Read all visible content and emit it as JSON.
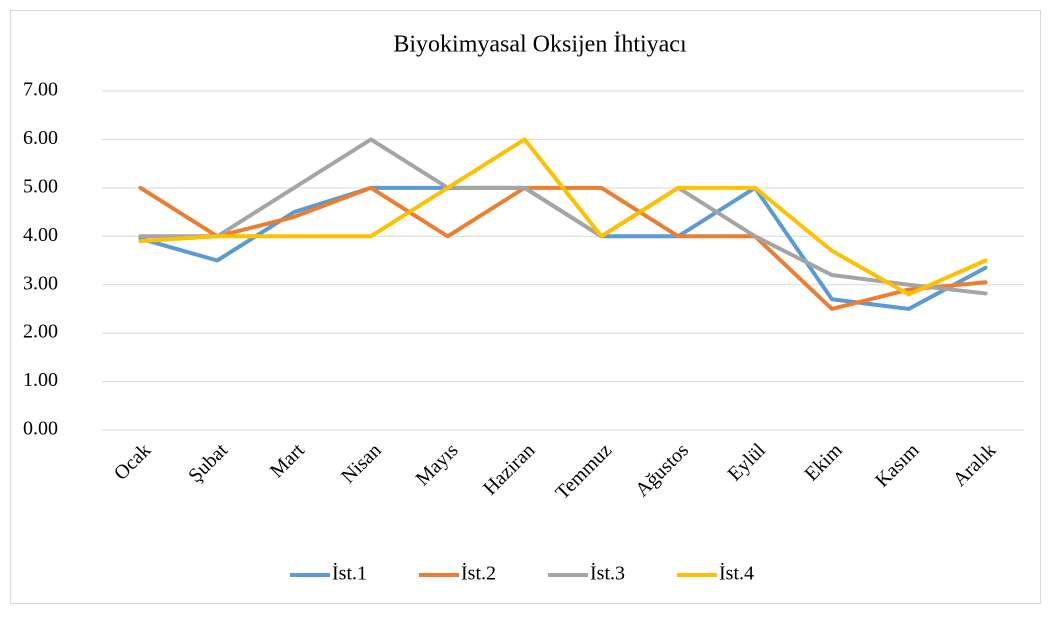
{
  "chart_data": {
    "type": "line",
    "title": "Biyokimyasal Oksijen İhtiyacı",
    "categories": [
      "Ocak",
      "Şubat",
      "Mart",
      "Nisan",
      "Mayıs",
      "Haziran",
      "Temmuz",
      "Ağustos",
      "Eylül",
      "Ekim",
      "Kasım",
      "Aralık"
    ],
    "series": [
      {
        "name": "İst.1",
        "color": "#5b9bd5",
        "values": [
          3.95,
          3.5,
          4.5,
          5,
          5,
          5,
          4,
          4,
          5,
          2.7,
          2.5,
          3.35
        ]
      },
      {
        "name": "İst.2",
        "color": "#ed7d31",
        "values": [
          5,
          4,
          4.4,
          5,
          4,
          5,
          5,
          4,
          4,
          2.5,
          2.9,
          3.05
        ]
      },
      {
        "name": "İst.3",
        "color": "#a5a5a5",
        "values": [
          4,
          4,
          5,
          6,
          5,
          5,
          4,
          5,
          4,
          3.2,
          3.0,
          2.82
        ]
      },
      {
        "name": "İst.4",
        "color": "#ffc000",
        "values": [
          3.9,
          4,
          4,
          4,
          5,
          6,
          4,
          5,
          5,
          3.7,
          2.8,
          3.5
        ]
      }
    ],
    "ylim": [
      0,
      7
    ],
    "yticks": [
      {
        "value": 0,
        "label": "0.00"
      },
      {
        "value": 1,
        "label": "1.00"
      },
      {
        "value": 2,
        "label": "2.00"
      },
      {
        "value": 3,
        "label": "3.00"
      },
      {
        "value": 4,
        "label": "4.00"
      },
      {
        "value": 5,
        "label": "5.00"
      },
      {
        "value": 6,
        "label": "6.00"
      },
      {
        "value": 7,
        "label": "7.00"
      }
    ],
    "grid": true,
    "legend": "bottom"
  }
}
